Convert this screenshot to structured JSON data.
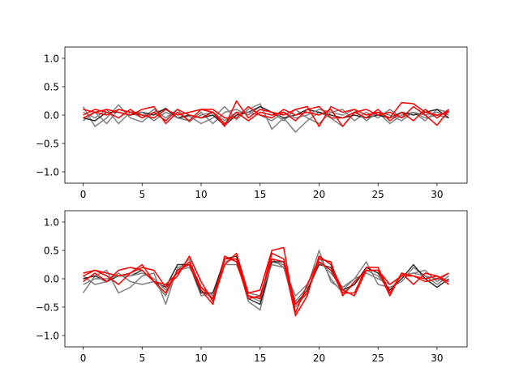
{
  "colors": {
    "gray_series": "#808080",
    "dark_series": "#1a1a1a",
    "red_series": "#ff0000",
    "axes": "#000000"
  },
  "chart_data": [
    {
      "type": "line",
      "grid": false,
      "xlim": [
        -1.55,
        32.55
      ],
      "ylim": [
        -1.2,
        1.2
      ],
      "xticks": [
        0,
        5,
        10,
        15,
        20,
        25,
        30
      ],
      "xtick_labels": [
        "0",
        "5",
        "10",
        "15",
        "20",
        "25",
        "30"
      ],
      "yticks": [
        -1.0,
        -0.5,
        0.0,
        0.5,
        1.0
      ],
      "ytick_labels": [
        "−1.0",
        "−0.5",
        "0.0",
        "0.5",
        "1.0"
      ],
      "x": [
        0,
        1,
        2,
        3,
        4,
        5,
        6,
        7,
        8,
        9,
        10,
        11,
        12,
        13,
        14,
        15,
        16,
        17,
        18,
        19,
        20,
        21,
        22,
        23,
        24,
        25,
        26,
        27,
        28,
        29,
        30,
        31
      ],
      "series": [
        {
          "color": "gray",
          "values": [
            0.15,
            -0.2,
            -0.05,
            0.18,
            -0.05,
            -0.12,
            0.05,
            0.1,
            -0.05,
            -0.02,
            -0.15,
            -0.05,
            0.15,
            -0.08,
            0.1,
            0.2,
            -0.25,
            -0.05,
            -0.3,
            -0.1,
            0.05,
            -0.05,
            -0.2,
            0.05,
            -0.05,
            0.05,
            -0.15,
            0.0,
            0.05,
            -0.1,
            0.1,
            0.05
          ]
        },
        {
          "color": "gray",
          "values": [
            -0.1,
            0.05,
            -0.15,
            0.1,
            0.05,
            -0.05,
            0.1,
            -0.05,
            0.1,
            -0.12,
            0.05,
            -0.15,
            0.05,
            0.1,
            0.0,
            0.15,
            0.05,
            -0.1,
            0.1,
            -0.05,
            -0.15,
            0.05,
            0.1,
            -0.1,
            0.05,
            -0.05,
            0.1,
            -0.05,
            0.05,
            -0.05,
            0.0,
            -0.05
          ]
        },
        {
          "color": "dark",
          "values": [
            -0.05,
            -0.1,
            0.05,
            0.05,
            0.0,
            0.05,
            0.0,
            0.12,
            -0.05,
            0.0,
            -0.05,
            0.0,
            -0.18,
            0.0,
            0.05,
            0.15,
            0.05,
            -0.05,
            0.0,
            0.1,
            0.05,
            0.0,
            -0.05,
            0.0,
            -0.05,
            0.0,
            -0.05,
            0.05,
            0.0,
            0.05,
            0.1,
            -0.05
          ]
        },
        {
          "color": "gray",
          "values": [
            0.05,
            -0.05,
            0.1,
            -0.15,
            0.05,
            0.05,
            -0.1,
            0.05,
            -0.05,
            -0.1,
            0.0,
            0.05,
            -0.1,
            0.05,
            0.05,
            0.0,
            -0.1,
            0.05,
            -0.05,
            0.0,
            0.1,
            0.05,
            0.0,
            0.1,
            -0.1,
            0.05,
            0.0,
            -0.1,
            0.05,
            0.0,
            0.05,
            0.0
          ]
        },
        {
          "color": "red",
          "values": [
            0.1,
            0.05,
            0.1,
            0.05,
            0.0,
            0.1,
            0.15,
            -0.15,
            0.05,
            -0.1,
            0.1,
            0.05,
            -0.2,
            0.25,
            -0.05,
            0.1,
            0.05,
            0.0,
            0.1,
            0.15,
            -0.2,
            0.15,
            0.05,
            0.1,
            0.0,
            0.05,
            -0.05,
            0.22,
            0.2,
            0.05,
            0.0,
            0.05
          ]
        },
        {
          "color": "red",
          "values": [
            0.0,
            0.1,
            0.05,
            -0.05,
            0.1,
            -0.05,
            0.05,
            -0.1,
            0.1,
            0.0,
            -0.05,
            0.05,
            -0.15,
            0.05,
            -0.1,
            0.05,
            0.0,
            0.05,
            -0.1,
            0.1,
            0.15,
            -0.05,
            -0.05,
            0.05,
            -0.05,
            0.1,
            -0.1,
            0.05,
            -0.1,
            0.1,
            -0.05,
            0.1
          ]
        },
        {
          "color": "red",
          "values": [
            -0.05,
            0.05,
            0.0,
            0.1,
            0.05,
            0.0,
            -0.05,
            0.1,
            0.0,
            0.05,
            0.1,
            0.1,
            -0.05,
            -0.05,
            0.15,
            0.0,
            -0.05,
            0.1,
            0.0,
            0.05,
            0.0,
            0.1,
            -0.2,
            0.05,
            0.1,
            0.0,
            0.05,
            -0.05,
            0.15,
            0.0,
            -0.18,
            0.08
          ]
        }
      ]
    },
    {
      "type": "line",
      "grid": false,
      "xlim": [
        -1.55,
        32.55
      ],
      "ylim": [
        -1.2,
        1.2
      ],
      "xticks": [
        0,
        5,
        10,
        15,
        20,
        25,
        30
      ],
      "xtick_labels": [
        "0",
        "5",
        "10",
        "15",
        "20",
        "25",
        "30"
      ],
      "yticks": [
        -1.0,
        -0.5,
        0.0,
        0.5,
        1.0
      ],
      "ytick_labels": [
        "−1.0",
        "−0.5",
        "0.0",
        "0.5",
        "1.0"
      ],
      "x": [
        0,
        1,
        2,
        3,
        4,
        5,
        6,
        7,
        8,
        9,
        10,
        11,
        12,
        13,
        14,
        15,
        16,
        17,
        18,
        19,
        20,
        21,
        22,
        23,
        24,
        25,
        26,
        27,
        28,
        29,
        30,
        31
      ],
      "series": [
        {
          "color": "gray",
          "values": [
            -0.25,
            0.05,
            0.15,
            -0.25,
            -0.15,
            0.05,
            0.1,
            -0.45,
            0.2,
            0.25,
            -0.3,
            -0.25,
            0.3,
            0.35,
            -0.4,
            -0.55,
            0.3,
            0.25,
            -0.4,
            -0.15,
            0.5,
            -0.05,
            -0.2,
            0.0,
            0.3,
            -0.1,
            -0.15,
            -0.05,
            0.2,
            0.05,
            -0.1,
            0.05
          ]
        },
        {
          "color": "gray",
          "values": [
            0.05,
            -0.1,
            -0.05,
            0.1,
            -0.05,
            -0.1,
            -0.05,
            -0.3,
            0.15,
            0.35,
            -0.2,
            -0.35,
            0.4,
            0.3,
            -0.3,
            -0.4,
            0.35,
            0.2,
            -0.5,
            -0.25,
            0.4,
            0.0,
            -0.25,
            -0.1,
            0.15,
            0.05,
            -0.2,
            0.05,
            0.1,
            0.15,
            -0.05,
            0.1
          ]
        },
        {
          "color": "dark",
          "values": [
            0.0,
            0.05,
            -0.05,
            0.05,
            0.05,
            0.15,
            -0.05,
            -0.15,
            0.25,
            0.25,
            -0.25,
            -0.25,
            0.35,
            0.4,
            -0.35,
            -0.45,
            0.3,
            0.3,
            -0.45,
            -0.2,
            0.25,
            0.2,
            -0.2,
            -0.1,
            0.2,
            0.1,
            -0.2,
            0.0,
            0.25,
            0.0,
            -0.15,
            0.0
          ]
        },
        {
          "color": "gray",
          "values": [
            -0.1,
            0.0,
            0.0,
            0.05,
            0.05,
            0.1,
            0.0,
            -0.2,
            0.15,
            0.2,
            -0.15,
            -0.3,
            0.25,
            0.25,
            -0.25,
            -0.3,
            0.25,
            0.2,
            -0.3,
            -0.1,
            0.3,
            0.1,
            -0.15,
            0.0,
            0.1,
            0.0,
            -0.1,
            0.05,
            0.1,
            0.05,
            0.0,
            -0.05
          ]
        },
        {
          "color": "red",
          "values": [
            0.1,
            0.15,
            0.05,
            -0.1,
            0.1,
            0.2,
            0.15,
            -0.15,
            0.05,
            0.4,
            -0.05,
            -0.4,
            0.25,
            0.45,
            -0.25,
            -0.2,
            0.5,
            0.55,
            -0.6,
            -0.1,
            0.35,
            0.3,
            -0.3,
            -0.05,
            0.15,
            0.15,
            -0.1,
            0.05,
            0.05,
            -0.05,
            0.0,
            0.1
          ]
        },
        {
          "color": "red",
          "values": [
            -0.05,
            0.1,
            -0.05,
            0.15,
            0.2,
            0.15,
            -0.05,
            -0.1,
            0.1,
            0.3,
            -0.15,
            -0.35,
            0.35,
            0.35,
            -0.3,
            -0.35,
            0.45,
            0.35,
            -0.45,
            -0.25,
            0.3,
            0.15,
            -0.25,
            -0.25,
            0.2,
            0.2,
            -0.25,
            0.1,
            0.05,
            0.0,
            0.05,
            -0.05
          ]
        },
        {
          "color": "red",
          "values": [
            0.05,
            0.15,
            0.1,
            0.05,
            0.1,
            0.25,
            -0.05,
            -0.25,
            0.15,
            0.25,
            -0.2,
            -0.45,
            0.4,
            0.3,
            -0.35,
            -0.3,
            0.35,
            0.3,
            -0.65,
            -0.3,
            0.4,
            0.25,
            -0.2,
            -0.3,
            0.15,
            0.15,
            -0.3,
            0.1,
            -0.1,
            0.1,
            0.05,
            -0.1
          ]
        }
      ]
    }
  ]
}
